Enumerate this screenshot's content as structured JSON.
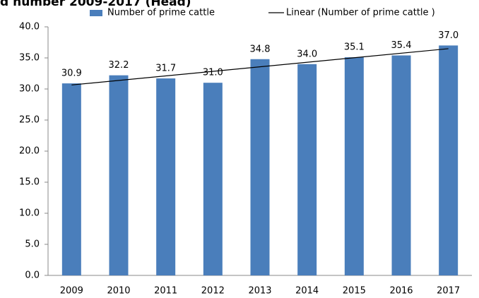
{
  "chart_data": {
    "type": "bar",
    "title": "d number 2009-2017 (Head)",
    "categories": [
      "2009",
      "2010",
      "2011",
      "2012",
      "2013",
      "2014",
      "2015",
      "2016",
      "2017"
    ],
    "series": [
      {
        "name": "Number of prime cattle",
        "color": "#4a7ebb",
        "values": [
          30.9,
          32.2,
          31.7,
          31,
          34.8,
          34,
          35.1,
          35.4,
          37
        ],
        "value_labels": [
          "30.9",
          "32.2",
          "31.7",
          "31.0",
          "34.8",
          "34.0",
          "35.1",
          "35.4",
          "37.0"
        ]
      },
      {
        "name": "Linear (Number of prime cattle )",
        "type": "trendline",
        "color": "#000000"
      }
    ],
    "ylim": [
      0,
      40
    ],
    "yticks": [
      {
        "value": 0,
        "label": "0.0"
      },
      {
        "value": 5,
        "label": "5.0"
      },
      {
        "value": 10,
        "label": "10.0"
      },
      {
        "value": 15,
        "label": "15.0"
      },
      {
        "value": 20,
        "label": "20.0"
      },
      {
        "value": 25,
        "label": "25.0"
      },
      {
        "value": 30,
        "label": "30.0"
      },
      {
        "value": 35,
        "label": "35.0"
      },
      {
        "value": 40,
        "label": "40.0"
      }
    ],
    "grid": false,
    "legend": "top"
  }
}
